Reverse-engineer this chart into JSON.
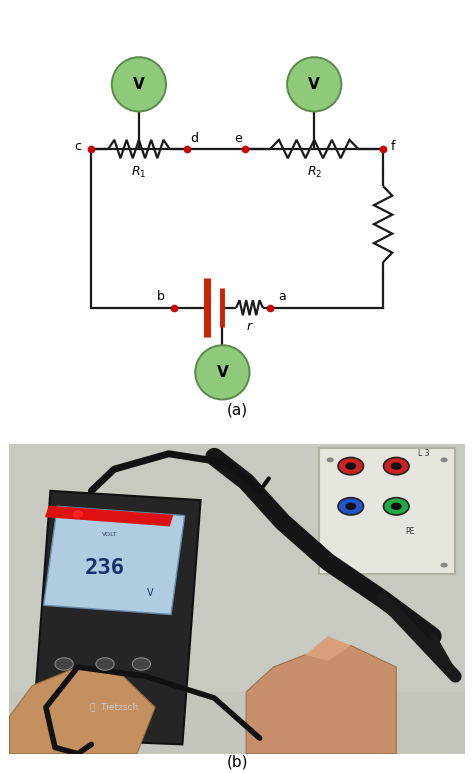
{
  "fig_width": 4.74,
  "fig_height": 7.73,
  "bg_color": "#ffffff",
  "panel_a_label": "(a)",
  "panel_b_label": "(b)",
  "voltmeter_color": "#8fca7a",
  "voltmeter_edge": "#5a8a4a",
  "voltmeter_text": "V",
  "wire_color": "#1a1a1a",
  "battery_color": "#cc2200",
  "dot_color": "#cc0000",
  "circuit_lw": 1.6,
  "photo_bg": "#c5c9c0",
  "meter_body": "#252525",
  "screen_color": "#b8d4ee",
  "screen_text": "#1a3060",
  "panel_color": "#e8e8e2",
  "hand_color": "#c8906a"
}
